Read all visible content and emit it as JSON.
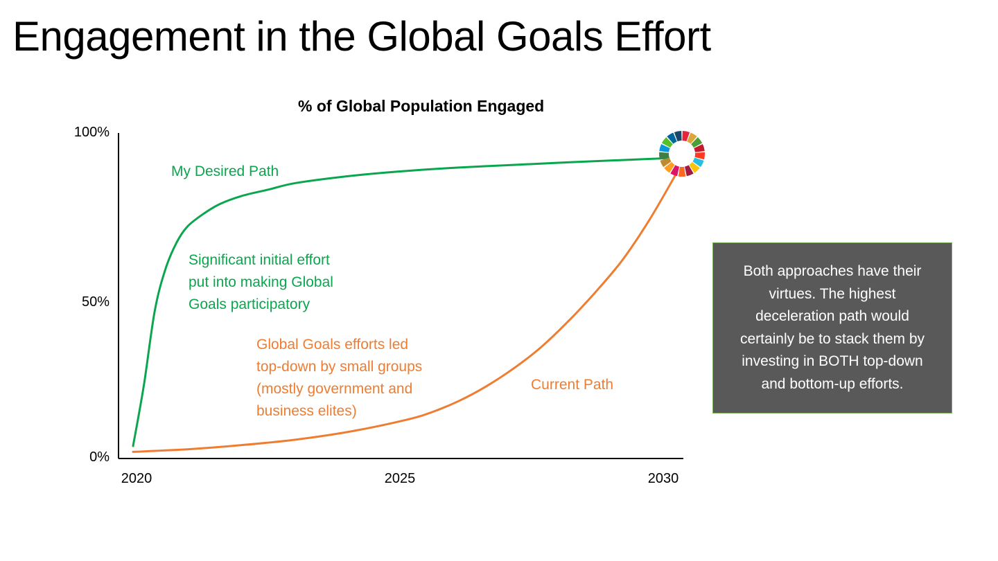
{
  "slide": {
    "title": "Engagement in the Global Goals Effort"
  },
  "chart_data": {
    "type": "line",
    "title": "% of Global Population Engaged",
    "xlabel": "",
    "ylabel": "",
    "x_ticks": [
      "2020",
      "2025",
      "2030"
    ],
    "y_ticks": [
      "0%",
      "50%",
      "100%"
    ],
    "xlim": [
      2020,
      2030
    ],
    "ylim": [
      0,
      100
    ],
    "grid": false,
    "legend": "none",
    "series": [
      {
        "name": "My Desired Path",
        "color": "#0aa64e",
        "x": [
          2020,
          2020.2,
          2020.4,
          2020.6,
          2020.8,
          2021.0,
          2021.3,
          2021.6,
          2022.0,
          2022.5,
          2023.0,
          2024.0,
          2025.0,
          2026.0,
          2027.0,
          2028.0,
          2029.0,
          2030.0
        ],
        "y": [
          3,
          22,
          45,
          58,
          66,
          71,
          75,
          78,
          80.5,
          82.5,
          84.5,
          86.7,
          88.2,
          89.3,
          90.1,
          90.9,
          91.6,
          92.3
        ]
      },
      {
        "name": "Current Path",
        "color": "#ee7d31",
        "x": [
          2020,
          2021,
          2022,
          2023,
          2024,
          2025,
          2025.5,
          2026,
          2026.5,
          2027,
          2027.5,
          2028,
          2028.5,
          2029,
          2029.5,
          2030
        ],
        "y": [
          1.2,
          2.0,
          3.3,
          5.0,
          7.5,
          11.0,
          13.5,
          17.0,
          21.5,
          27.0,
          33.5,
          41.5,
          50.5,
          60.5,
          73.0,
          87.5
        ]
      }
    ],
    "annotations": [
      {
        "key": "desired_label",
        "text": "My Desired Path"
      },
      {
        "key": "desired_note",
        "lines": [
          "Significant initial effort",
          "put into making Global",
          "Goals participatory"
        ]
      },
      {
        "key": "current_note",
        "lines": [
          "Global Goals efforts led",
          "top-down by small groups",
          "(mostly government and",
          "business elites)"
        ]
      },
      {
        "key": "current_label",
        "text": "Current Path"
      }
    ]
  },
  "callout": {
    "lines": [
      "Both approaches have their",
      "virtues. The highest",
      "deceleration path would",
      "certainly be to stack them by",
      "investing in BOTH top-down",
      "and bottom-up efforts."
    ],
    "background": "#595959"
  },
  "sdg_wheel": {
    "icon": "sdg-color-wheel-icon",
    "colors": [
      "#e5243b",
      "#dda63a",
      "#4c9f38",
      "#c5192d",
      "#ff3a21",
      "#26bde2",
      "#fcc30b",
      "#a21942",
      "#fd6925",
      "#dd1367",
      "#fd9d24",
      "#bf8b2e",
      "#3f7e44",
      "#0a97d9",
      "#56c02b",
      "#00689d",
      "#19486a"
    ]
  }
}
